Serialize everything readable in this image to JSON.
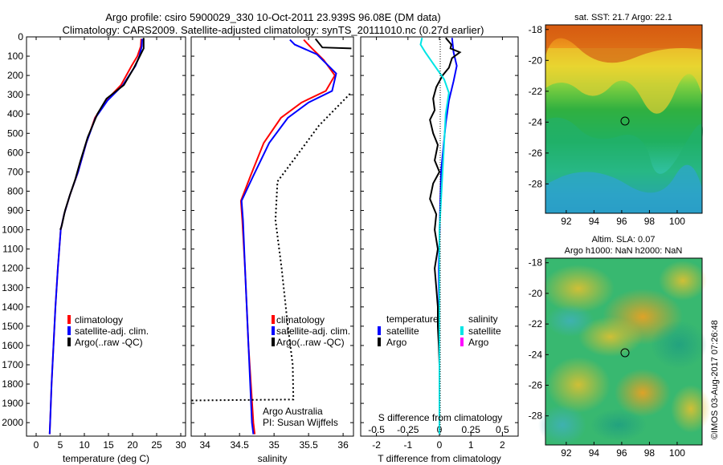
{
  "header": {
    "line1": "Argo profile: csiro 5900029_330 10-Oct-2011 23.939S 96.08E (DM data)",
    "line2": "Climatology: CARS2009. Satellite-adjusted climatology: synTS_20111010.nc (0.27d earlier)"
  },
  "chart_data": [
    {
      "type": "line",
      "xlabel": "temperature (deg C)",
      "ylabel": "",
      "xlim": [
        -2,
        31
      ],
      "ylim": [
        2070,
        0
      ],
      "x_ticks": [
        "0",
        "5",
        "10",
        "15",
        "20",
        "25",
        "30"
      ],
      "y_ticks": [
        "0",
        "100",
        "200",
        "300",
        "400",
        "500",
        "600",
        "700",
        "800",
        "900",
        "1000",
        "1100",
        "1200",
        "1300",
        "1400",
        "1500",
        "1600",
        "1700",
        "1800",
        "1900",
        "2000"
      ],
      "legend": [
        "climatology",
        "satellite-adj. clim.",
        "Argo(..raw -QC)"
      ],
      "series": [
        {
          "name": "climatology",
          "color": "#ff0000",
          "points": [
            [
              21.8,
              10
            ],
            [
              21.7,
              50
            ],
            [
              21.0,
              100
            ],
            [
              19.8,
              150
            ],
            [
              17.6,
              250
            ],
            [
              14.5,
              330
            ],
            [
              12.2,
              420
            ],
            [
              10.4,
              550
            ],
            [
              8.7,
              700
            ],
            [
              7.0,
              820
            ],
            [
              5.8,
              920
            ],
            [
              5.1,
              1000
            ],
            [
              4.5,
              1200
            ],
            [
              4.0,
              1400
            ],
            [
              3.6,
              1600
            ],
            [
              3.2,
              1800
            ],
            [
              2.9,
              2000
            ],
            [
              2.8,
              2060
            ]
          ]
        },
        {
          "name": "satellite-adj. clim.",
          "color": "#0000ff",
          "points": [
            [
              22.0,
              10
            ],
            [
              21.9,
              50
            ],
            [
              21.4,
              100
            ],
            [
              20.6,
              150
            ],
            [
              18.0,
              250
            ],
            [
              14.8,
              330
            ],
            [
              12.3,
              420
            ],
            [
              10.4,
              550
            ],
            [
              8.7,
              700
            ],
            [
              7.0,
              820
            ],
            [
              5.8,
              920
            ],
            [
              5.1,
              1000
            ],
            [
              4.5,
              1200
            ],
            [
              4.0,
              1400
            ],
            [
              3.6,
              1600
            ],
            [
              3.2,
              1800
            ],
            [
              2.9,
              2000
            ],
            [
              2.8,
              2060
            ]
          ]
        },
        {
          "name": "Argo(..raw -QC)",
          "color": "#000000",
          "points": [
            [
              22.3,
              5
            ],
            [
              22.3,
              60
            ],
            [
              21.3,
              110
            ],
            [
              20.3,
              160
            ],
            [
              18.2,
              250
            ],
            [
              14.6,
              320
            ],
            [
              12.7,
              400
            ],
            [
              10.7,
              520
            ],
            [
              9.1,
              650
            ],
            [
              8.1,
              740
            ],
            [
              7.0,
              820
            ],
            [
              6.0,
              900
            ],
            [
              5.3,
              980
            ],
            [
              5.0,
              1000
            ]
          ]
        }
      ]
    },
    {
      "type": "line",
      "xlabel": "salinity",
      "ylabel": "",
      "xlim": [
        33.8,
        36.15
      ],
      "ylim": [
        2070,
        0
      ],
      "x_ticks": [
        "34",
        "34.5",
        "35",
        "35.5",
        "36"
      ],
      "legend": [
        "climatology",
        "satellite-adj. clim.",
        "Argo(..raw -QC)"
      ],
      "annotation": [
        "Argo Australia",
        "PI: Susan Wijffels"
      ],
      "series": [
        {
          "name": "climatology",
          "color": "#ff0000",
          "points": [
            [
              35.43,
              15
            ],
            [
              35.55,
              60
            ],
            [
              35.72,
              120
            ],
            [
              35.88,
              200
            ],
            [
              35.75,
              280
            ],
            [
              35.4,
              340
            ],
            [
              35.1,
              420
            ],
            [
              34.85,
              550
            ],
            [
              34.66,
              720
            ],
            [
              34.52,
              850
            ],
            [
              34.54,
              950
            ],
            [
              34.58,
              1200
            ],
            [
              34.63,
              1600
            ],
            [
              34.7,
              2000
            ],
            [
              34.72,
              2060
            ]
          ]
        },
        {
          "name": "satellite-adj. clim.",
          "color": "#0000ff",
          "points": [
            [
              35.23,
              15
            ],
            [
              35.3,
              40
            ],
            [
              35.62,
              90
            ],
            [
              35.9,
              190
            ],
            [
              35.84,
              280
            ],
            [
              35.5,
              340
            ],
            [
              35.2,
              420
            ],
            [
              34.93,
              550
            ],
            [
              34.7,
              720
            ],
            [
              34.53,
              850
            ],
            [
              34.55,
              950
            ],
            [
              34.58,
              1200
            ],
            [
              34.63,
              1600
            ],
            [
              34.68,
              2000
            ],
            [
              34.7,
              2060
            ]
          ]
        },
        {
          "name": "Argo(..raw -QC)",
          "color": "#000000",
          "points": [
            [
              35.6,
              10
            ],
            [
              35.7,
              55
            ],
            [
              36.12,
              60
            ]
          ]
        },
        {
          "name": "Argo(..raw -QC)",
          "color": "#000000",
          "dashed": true,
          "points": [
            [
              36.1,
              295
            ],
            [
              35.65,
              460
            ],
            [
              35.3,
              630
            ],
            [
              35.05,
              750
            ],
            [
              35.02,
              950
            ],
            [
              35.11,
              1200
            ],
            [
              35.2,
              1500
            ],
            [
              35.27,
              1700
            ],
            [
              35.28,
              1880
            ],
            [
              33.8,
              1885
            ]
          ]
        }
      ]
    },
    {
      "type": "line",
      "xlabel": "T difference from climatology",
      "ylabel": "",
      "xlim": [
        -2.5,
        2.5
      ],
      "ylim": [
        2070,
        0
      ],
      "x_ticks_T": [
        "-2",
        "-1",
        "0",
        "1",
        "2"
      ],
      "x_ticks_S": [
        "-0.5",
        "-0.25",
        "0",
        "0.25",
        "0.5"
      ],
      "top_xlabel": "S difference from climatology",
      "legend_temperature": [
        "temperature",
        "satellite",
        "Argo"
      ],
      "legend_salinity": [
        "salinity",
        "satellite",
        "Argo"
      ],
      "series": [
        {
          "name": "satellite",
          "color": "#0000ff",
          "points": [
            [
              0.4,
              5
            ],
            [
              0.45,
              80
            ],
            [
              0.55,
              150
            ],
            [
              0.45,
              230
            ],
            [
              0.3,
              330
            ],
            [
              0.2,
              450
            ],
            [
              0.05,
              700
            ],
            [
              0.02,
              900
            ],
            [
              -0.02,
              1200
            ],
            [
              0.0,
              1600
            ],
            [
              0.0,
              2060
            ]
          ]
        },
        {
          "name": "Argo",
          "color": "#000000",
          "points": [
            [
              0.2,
              5
            ],
            [
              0.38,
              40
            ],
            [
              0.35,
              60
            ],
            [
              0.65,
              80
            ],
            [
              0.4,
              110
            ],
            [
              0.3,
              160
            ],
            [
              0.1,
              200
            ],
            [
              -0.1,
              260
            ],
            [
              -0.2,
              320
            ],
            [
              -0.15,
              380
            ],
            [
              -0.3,
              430
            ],
            [
              -0.2,
              500
            ],
            [
              -0.05,
              560
            ],
            [
              -0.15,
              640
            ],
            [
              0.0,
              700
            ],
            [
              -0.2,
              760
            ],
            [
              -0.3,
              840
            ],
            [
              -0.1,
              920
            ],
            [
              -0.15,
              1000
            ],
            [
              -0.05,
              1100
            ],
            [
              -0.15,
              1200
            ],
            [
              -0.1,
              1300
            ],
            [
              -0.05,
              1400
            ],
            [
              -0.05,
              1500
            ],
            [
              -0.02,
              1600
            ],
            [
              0.0,
              1700
            ],
            [
              0.0,
              1800
            ],
            [
              0.0,
              1900
            ],
            [
              0.0,
              2060
            ]
          ]
        },
        {
          "name": "satellite",
          "color": "#00e5e5",
          "points": [
            [
              -0.55,
              5
            ],
            [
              -0.6,
              40
            ],
            [
              -0.45,
              80
            ],
            [
              -0.15,
              150
            ],
            [
              0.15,
              220
            ],
            [
              0.3,
              290
            ],
            [
              0.2,
              400
            ],
            [
              0.15,
              550
            ],
            [
              0.1,
              700
            ],
            [
              0.05,
              850
            ],
            [
              0.0,
              1000
            ],
            [
              0.0,
              1500
            ],
            [
              0.0,
              2060
            ]
          ]
        }
      ]
    }
  ],
  "maps": {
    "sst": {
      "title": "sat. SST: 21.7 Argo: 22.1",
      "x_ticks": [
        "92",
        "94",
        "96",
        "98",
        "100"
      ],
      "y_ticks": [
        "-18",
        "-20",
        "-22",
        "-24",
        "-26",
        "-28"
      ]
    },
    "sla": {
      "title_line1": "Altim. SLA: 0.07",
      "title_line2": "Argo h1000: NaN h2000: NaN",
      "x_ticks": [
        "92",
        "94",
        "96",
        "98",
        "100"
      ],
      "y_ticks": [
        "-18",
        "-20",
        "-22",
        "-24",
        "-26",
        "-28"
      ]
    },
    "marker": {
      "lon": 96.08,
      "lat": -23.939
    }
  },
  "credit": "©IMOS 03-Aug-2017 07:26:48",
  "colors": {
    "red": "#ff0000",
    "blue": "#0000ff",
    "black": "#000000",
    "cyan": "#00e5e5",
    "magenta": "#ff00ff"
  }
}
